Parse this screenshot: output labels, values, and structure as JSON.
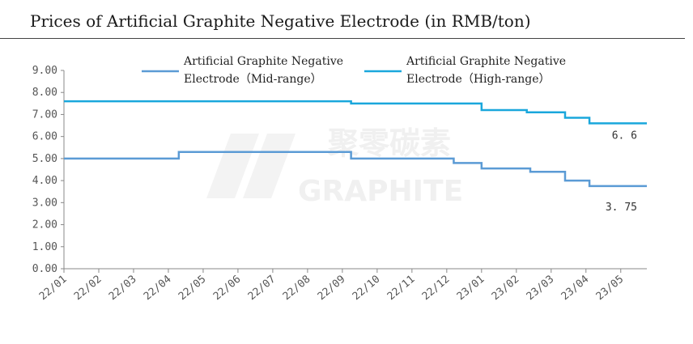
{
  "chart_data": {
    "type": "line",
    "title": "Prices of Artificial Graphite Negative Electrode (in RMB/ton)",
    "xlabel": "",
    "ylabel": "",
    "x_ticks": [
      "22/01",
      "22/02",
      "22/03",
      "22/04",
      "22/05",
      "22/06",
      "22/07",
      "22/08",
      "22/09",
      "22/10",
      "22/11",
      "22/12",
      "23/01",
      "23/02",
      "23/03",
      "23/04",
      "23/05"
    ],
    "y_ticks": [
      "9.00",
      "8.00",
      "7.00",
      "6.00",
      "5.00",
      "4.00",
      "3.00",
      "2.00",
      "1.00",
      "0.00"
    ],
    "ylim": [
      0,
      9
    ],
    "xlim": [
      0,
      16.75
    ],
    "grid": false,
    "legend": "top",
    "series": [
      {
        "name_line1": "Artificial Graphite Negative",
        "name_line2": "Electrode（Mid-range）",
        "color": "#5b9bd5",
        "steps": [
          [
            0,
            5.0
          ],
          [
            3.3,
            5.3
          ],
          [
            8.25,
            5.0
          ],
          [
            11.2,
            4.8
          ],
          [
            12.0,
            4.55
          ],
          [
            13.4,
            4.4
          ],
          [
            14.4,
            4.0
          ],
          [
            15.1,
            3.75
          ],
          [
            16.75,
            3.75
          ]
        ],
        "end_label": "3. 75"
      },
      {
        "name_line1": "Artificial Graphite Negative",
        "name_line2": "Electrode（High-range）",
        "color": "#1aa7dc",
        "steps": [
          [
            0,
            7.6
          ],
          [
            8.25,
            7.5
          ],
          [
            12.0,
            7.2
          ],
          [
            13.3,
            7.1
          ],
          [
            14.4,
            6.85
          ],
          [
            15.1,
            6.6
          ],
          [
            16.75,
            6.6
          ]
        ],
        "end_label": "6. 6"
      }
    ]
  },
  "watermark": {
    "text_cn": "聚零碳素",
    "text_en": "GRAPHITE"
  }
}
